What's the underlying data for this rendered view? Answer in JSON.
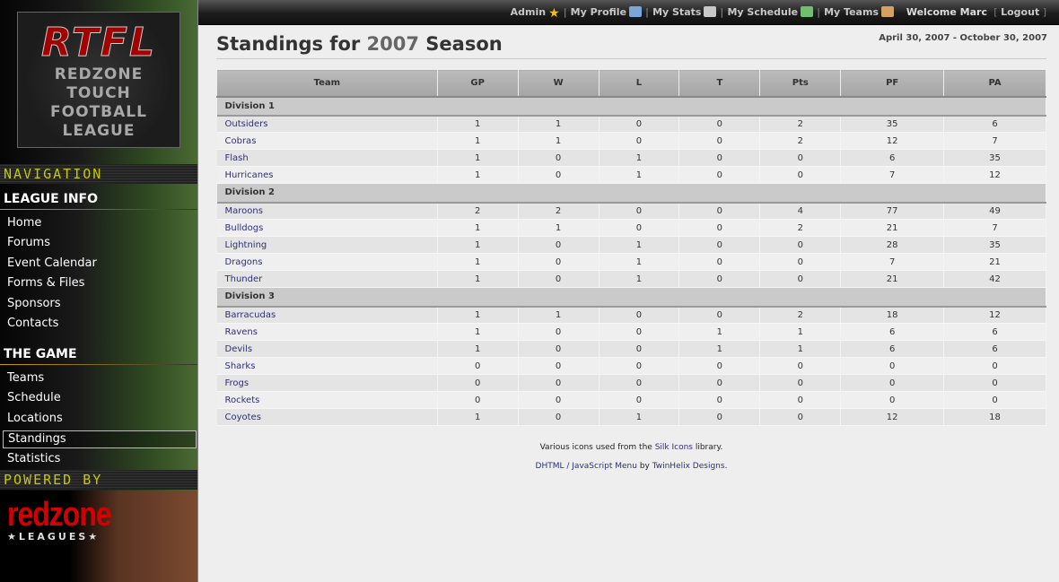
{
  "logo": {
    "abbr": "RTFL",
    "lines": [
      "REDZONE",
      "TOUCH",
      "FOOTBALL",
      "LEAGUE"
    ]
  },
  "sidebar": {
    "navigation_label": "NAVIGATION",
    "sections": [
      {
        "title": "LEAGUE INFO",
        "items": [
          "Home",
          "Forums",
          "Event Calendar",
          "Forms & Files",
          "Sponsors",
          "Contacts"
        ]
      },
      {
        "title": "THE GAME",
        "items": [
          "Teams",
          "Schedule",
          "Locations",
          "Standings",
          "Statistics"
        ]
      }
    ],
    "active_item": "Standings",
    "powered_label": "POWERED BY",
    "powered_logo": {
      "name": "redzone",
      "sub": "★LEAGUES★"
    }
  },
  "topbar": {
    "links": [
      {
        "label": "Admin",
        "icon": "star-icon",
        "color": "#f2c200"
      },
      {
        "label": "My Profile",
        "icon": "id-card-icon",
        "color": "#7aa6d8"
      },
      {
        "label": "My Stats",
        "icon": "calculator-icon",
        "color": "#c8c8c8"
      },
      {
        "label": "My Schedule",
        "icon": "calendar-icon",
        "color": "#6fbf6f"
      },
      {
        "label": "My Teams",
        "icon": "group-icon",
        "color": "#d8a060"
      }
    ],
    "welcome": "Welcome Marc",
    "logout": "Logout"
  },
  "page": {
    "title_prefix": "Standings for ",
    "year": "2007",
    "title_suffix": " Season",
    "dates": "April 30, 2007 - October 30, 2007"
  },
  "table": {
    "columns": [
      "Team",
      "GP",
      "W",
      "L",
      "T",
      "Pts",
      "PF",
      "PA"
    ],
    "divisions": [
      {
        "name": "Division 1",
        "rows": [
          [
            "Outsiders",
            "1",
            "1",
            "0",
            "0",
            "2",
            "35",
            "6"
          ],
          [
            "Cobras",
            "1",
            "1",
            "0",
            "0",
            "2",
            "12",
            "7"
          ],
          [
            "Flash",
            "1",
            "0",
            "1",
            "0",
            "0",
            "6",
            "35"
          ],
          [
            "Hurricanes",
            "1",
            "0",
            "1",
            "0",
            "0",
            "7",
            "12"
          ]
        ]
      },
      {
        "name": "Division 2",
        "rows": [
          [
            "Maroons",
            "2",
            "2",
            "0",
            "0",
            "4",
            "77",
            "49"
          ],
          [
            "Bulldogs",
            "1",
            "1",
            "0",
            "0",
            "2",
            "21",
            "7"
          ],
          [
            "Lightning",
            "1",
            "0",
            "1",
            "0",
            "0",
            "28",
            "35"
          ],
          [
            "Dragons",
            "1",
            "0",
            "1",
            "0",
            "0",
            "7",
            "21"
          ],
          [
            "Thunder",
            "1",
            "0",
            "1",
            "0",
            "0",
            "21",
            "42"
          ]
        ]
      },
      {
        "name": "Division 3",
        "rows": [
          [
            "Barracudas",
            "1",
            "1",
            "0",
            "0",
            "2",
            "18",
            "12"
          ],
          [
            "Ravens",
            "1",
            "0",
            "0",
            "1",
            "1",
            "6",
            "6"
          ],
          [
            "Devils",
            "1",
            "0",
            "0",
            "1",
            "1",
            "6",
            "6"
          ],
          [
            "Sharks",
            "0",
            "0",
            "0",
            "0",
            "0",
            "0",
            "0"
          ],
          [
            "Frogs",
            "0",
            "0",
            "0",
            "0",
            "0",
            "0",
            "0"
          ],
          [
            "Rockets",
            "0",
            "0",
            "0",
            "0",
            "0",
            "0",
            "0"
          ],
          [
            "Coyotes",
            "1",
            "0",
            "1",
            "0",
            "0",
            "12",
            "18"
          ]
        ]
      }
    ]
  },
  "footer": {
    "line1_prefix": "Various icons used from the ",
    "line1_link": "Silk Icons",
    "line1_suffix": " library.",
    "line2_link": "DHTML / JavaScript Menu",
    "line2_mid": " by ",
    "line2_link2": "TwinHelix Designs",
    "line2_suffix": "."
  }
}
